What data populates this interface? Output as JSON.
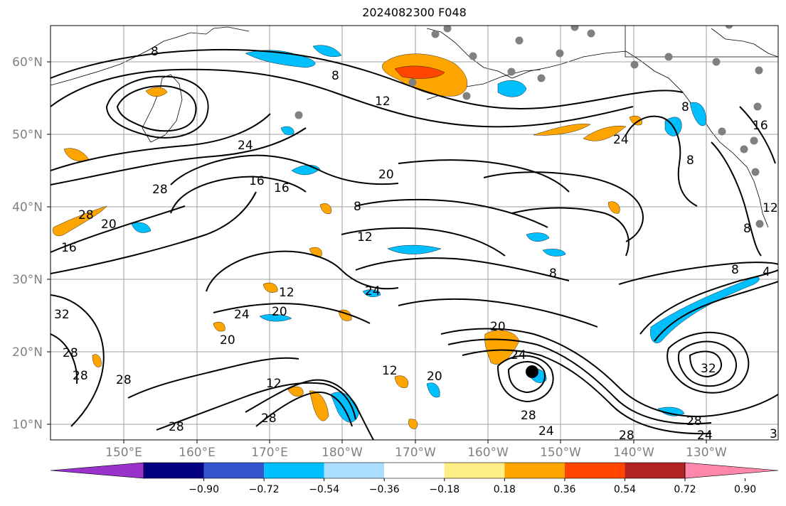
{
  "title": "2024082300 F048",
  "map": {
    "lat_ticks": [
      "60°N",
      "50°N",
      "40°N",
      "30°N",
      "20°N",
      "10°N"
    ],
    "lon_ticks": [
      "150°E",
      "160°E",
      "170°E",
      "180°W",
      "170°W",
      "160°W",
      "150°W",
      "140°W",
      "130°W"
    ],
    "contour_labels": [
      "8",
      "12",
      "24",
      "28",
      "16",
      "20",
      "8",
      "12",
      "8",
      "16",
      "20",
      "28",
      "20",
      "16",
      "8",
      "12",
      "24",
      "12",
      "20",
      "24",
      "32",
      "28",
      "20",
      "28",
      "28",
      "28",
      "28",
      "12",
      "20",
      "24",
      "28",
      "32",
      "24",
      "28",
      "28",
      "24",
      "3",
      "8",
      "8",
      "16",
      "8",
      "12",
      "8",
      "4",
      "24"
    ],
    "contour_color": "#000000"
  },
  "colorbar": {
    "colors": [
      "#9933cc",
      "#000080",
      "#3355cc",
      "#00bfff",
      "#aaddff",
      "#ffffff",
      "#ffee88",
      "#ffa500",
      "#ff4500",
      "#b22222",
      "#ff88aa"
    ],
    "tick_labels": [
      "−0.90",
      "−0.72",
      "−0.54",
      "−0.36",
      "−0.18",
      "0.18",
      "0.36",
      "0.54",
      "0.72",
      "0.90"
    ]
  },
  "markers": {
    "gray_color": "#808080",
    "storm_color": "#000000"
  }
}
